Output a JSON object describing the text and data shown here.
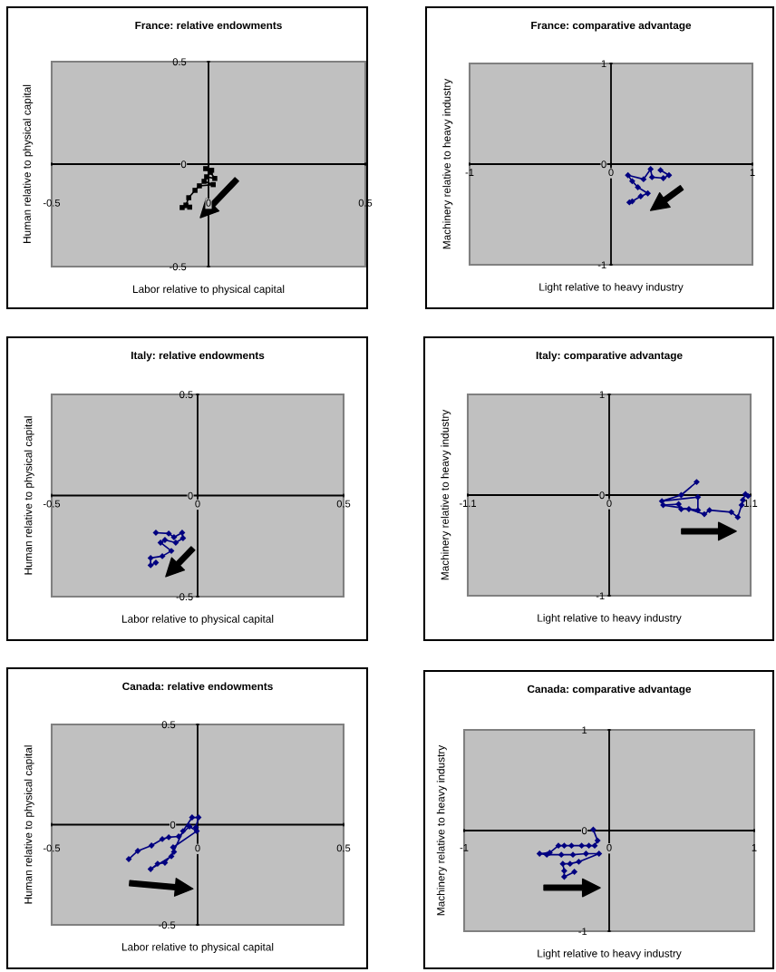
{
  "chart_data": [
    {
      "type": "line",
      "title": "France: relative endowments",
      "xlabel": "Labor relative to physical capital",
      "ylabel": "Human relative to physical capital",
      "xlim": [
        -0.5,
        0.5
      ],
      "ylim": [
        -0.5,
        0.5
      ],
      "xticks": [
        -0.5,
        0,
        0.5
      ],
      "yticks": [
        -0.5,
        0,
        0.5
      ],
      "marker": "square",
      "series": [
        {
          "color": "#000000",
          "x": [
            0.01,
            -0.009,
            0.006,
            0.02,
            -0.006,
            -0.014,
            0.015,
            -0.029,
            -0.043,
            -0.063,
            -0.072,
            -0.084,
            -0.06
          ],
          "values": [
            -0.03,
            -0.022,
            -0.04,
            -0.07,
            -0.062,
            -0.084,
            -0.1,
            -0.106,
            -0.128,
            -0.164,
            -0.2,
            -0.212,
            -0.21
          ]
        }
      ]
    },
    {
      "type": "line",
      "title": "France: comparative advantage",
      "xlabel": "Light relative to heavy industry",
      "ylabel": "Machinery relative to heavy industry",
      "xlim": [
        -1,
        1
      ],
      "ylim": [
        -1,
        1
      ],
      "xticks": [
        -1,
        0,
        1
      ],
      "yticks": [
        -1,
        0,
        1
      ],
      "marker": "diamond",
      "series": [
        {
          "color": "#000080",
          "x": [
            0.35,
            0.41,
            0.37,
            0.29,
            0.28,
            0.23,
            0.12,
            0.15,
            0.19,
            0.26,
            0.21,
            0.15,
            0.13
          ],
          "values": [
            -0.06,
            -0.11,
            -0.14,
            -0.13,
            -0.05,
            -0.15,
            -0.11,
            -0.17,
            -0.23,
            -0.29,
            -0.32,
            -0.37,
            -0.38
          ]
        }
      ]
    },
    {
      "type": "line",
      "title": "Italy: relative endowments",
      "xlabel": "Labor relative to physical capital",
      "ylabel": "Human relative to physical capital",
      "xlim": [
        -0.5,
        0.5
      ],
      "ylim": [
        -0.5,
        0.5
      ],
      "xticks": [
        -0.5,
        0,
        0.5
      ],
      "yticks": [
        -0.5,
        0,
        0.5
      ],
      "marker": "diamond",
      "series": [
        {
          "color": "#000080",
          "x": [
            -0.143,
            -0.099,
            -0.081,
            -0.053,
            -0.05,
            -0.075,
            -0.112,
            -0.127,
            -0.09,
            -0.121,
            -0.161,
            -0.161,
            -0.143
          ],
          "values": [
            -0.184,
            -0.188,
            -0.206,
            -0.184,
            -0.211,
            -0.233,
            -0.22,
            -0.233,
            -0.274,
            -0.3,
            -0.309,
            -0.345,
            -0.332
          ]
        }
      ]
    },
    {
      "type": "line",
      "title": "Italy: comparative advantage",
      "xlabel": "Light relative to heavy industry",
      "ylabel": "Machinery relative to heavy industry",
      "xlim": [
        -1.1,
        1.1
      ],
      "ylim": [
        -1,
        1
      ],
      "xticks": [
        -1.1,
        0,
        1.1
      ],
      "yticks": [
        -1,
        0,
        1
      ],
      "marker": "diamond",
      "series": [
        {
          "color": "#000080",
          "x": [
            0.68,
            0.56,
            0.41,
            0.69,
            0.69,
            0.42,
            0.54,
            0.56,
            0.62,
            0.74,
            0.78,
            0.95,
            1.0,
            1.03,
            1.04,
            1.06,
            1.08
          ],
          "values": [
            0.13,
            0.0,
            -0.06,
            -0.02,
            -0.15,
            -0.1,
            -0.09,
            -0.14,
            -0.14,
            -0.19,
            -0.15,
            -0.17,
            -0.22,
            -0.1,
            -0.05,
            0.01,
            -0.01
          ]
        }
      ]
    },
    {
      "type": "line",
      "title": "Canada: relative endowments",
      "xlabel": "Labor relative to physical capital",
      "ylabel": "Human relative to physical capital",
      "xlim": [
        -0.5,
        0.5
      ],
      "ylim": [
        -0.5,
        0.5
      ],
      "xticks": [
        -0.5,
        0,
        0.5
      ],
      "yticks": [
        -0.5,
        0,
        0.5
      ],
      "marker": "diamond",
      "series": [
        {
          "color": "#000080",
          "x": [
            -0.236,
            -0.205,
            -0.158,
            -0.121,
            -0.099,
            -0.065,
            -0.028,
            -0.003,
            -0.084,
            -0.081,
            -0.112,
            -0.137,
            -0.161,
            -0.09,
            -0.05,
            -0.019,
            0.003,
            -0.006
          ],
          "values": [
            -0.172,
            -0.131,
            -0.104,
            -0.072,
            -0.063,
            -0.059,
            -0.009,
            -0.032,
            -0.113,
            -0.136,
            -0.19,
            -0.195,
            -0.222,
            -0.158,
            -0.032,
            0.036,
            0.036,
            -0.014
          ]
        }
      ]
    },
    {
      "type": "line",
      "title": "Canada: comparative advantage",
      "xlabel": "Light relative to heavy industry",
      "ylabel": "Machinery relative to heavy industry",
      "xlim": [
        -1,
        1
      ],
      "ylim": [
        -1,
        1
      ],
      "xticks": [
        -1,
        0,
        1
      ],
      "yticks": [
        -1,
        0,
        1
      ],
      "marker": "diamond",
      "series": [
        {
          "color": "#000080",
          "x": [
            -0.11,
            -0.08,
            -0.1,
            -0.14,
            -0.19,
            -0.26,
            -0.31,
            -0.35,
            -0.41,
            -0.48,
            -0.43,
            -0.33,
            -0.25,
            -0.16,
            -0.07,
            -0.21,
            -0.27,
            -0.32,
            -0.31,
            -0.31,
            -0.24
          ],
          "values": [
            0.01,
            -0.1,
            -0.15,
            -0.15,
            -0.15,
            -0.15,
            -0.15,
            -0.15,
            -0.22,
            -0.23,
            -0.24,
            -0.24,
            -0.24,
            -0.23,
            -0.23,
            -0.31,
            -0.33,
            -0.33,
            -0.4,
            -0.46,
            -0.41
          ]
        }
      ]
    }
  ]
}
